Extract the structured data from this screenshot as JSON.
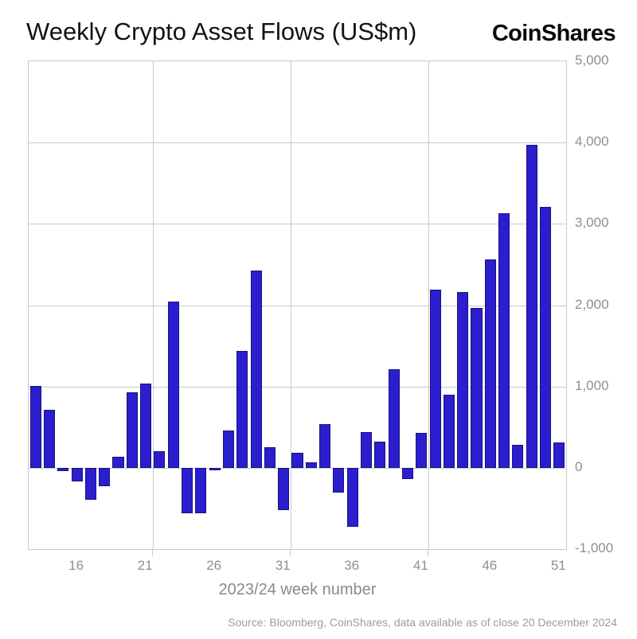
{
  "header": {
    "title": "Weekly Crypto Asset Flows (US$m)",
    "logo": "CoinShares"
  },
  "chart_data": {
    "type": "bar",
    "title": "Weekly Crypto Asset Flows (US$m)",
    "xlabel": "2023/24 week number",
    "ylabel": "",
    "x": [
      13,
      14,
      15,
      16,
      17,
      18,
      19,
      20,
      21,
      22,
      23,
      24,
      25,
      26,
      27,
      28,
      29,
      30,
      31,
      32,
      33,
      34,
      35,
      36,
      37,
      38,
      39,
      40,
      41,
      42,
      43,
      44,
      45,
      46,
      47,
      48,
      49,
      50,
      51
    ],
    "values": [
      1010,
      715,
      -40,
      -165,
      -390,
      -225,
      135,
      925,
      1040,
      205,
      2040,
      -565,
      -565,
      -30,
      455,
      1440,
      2430,
      255,
      -525,
      185,
      70,
      540,
      -310,
      -730,
      440,
      320,
      1215,
      -135,
      430,
      2190,
      895,
      2160,
      1965,
      2560,
      3130,
      280,
      3970,
      3210,
      310
    ],
    "series_name": "Weekly crypto asset flows (US$m)",
    "ylim": [
      -1000,
      5000
    ],
    "y_tick_values": [
      5000,
      4000,
      3000,
      2000,
      1000,
      0,
      -1000
    ],
    "y_tick_labels": [
      "5,000",
      "4,000",
      "3,000",
      "2,000",
      "1,000",
      "0",
      "-1,000"
    ],
    "x_tick_weeks": [
      16,
      21,
      26,
      31,
      36,
      41,
      46,
      51
    ],
    "x_tick_labels": [
      "16",
      "21",
      "26",
      "31",
      "36",
      "41",
      "46",
      "51"
    ],
    "v_gridlines_after_weeks": [
      21,
      31,
      41
    ],
    "grid": true,
    "legend": "none",
    "bar_color": "#2a1ecf",
    "bar_border_color": "#1a117f",
    "grid_color": "#c9c9c9",
    "tick_text_color": "#8f8f8f"
  },
  "footer": {
    "source": "Source: Bloomberg, CoinShares, data available as of close 20 December 2024"
  }
}
